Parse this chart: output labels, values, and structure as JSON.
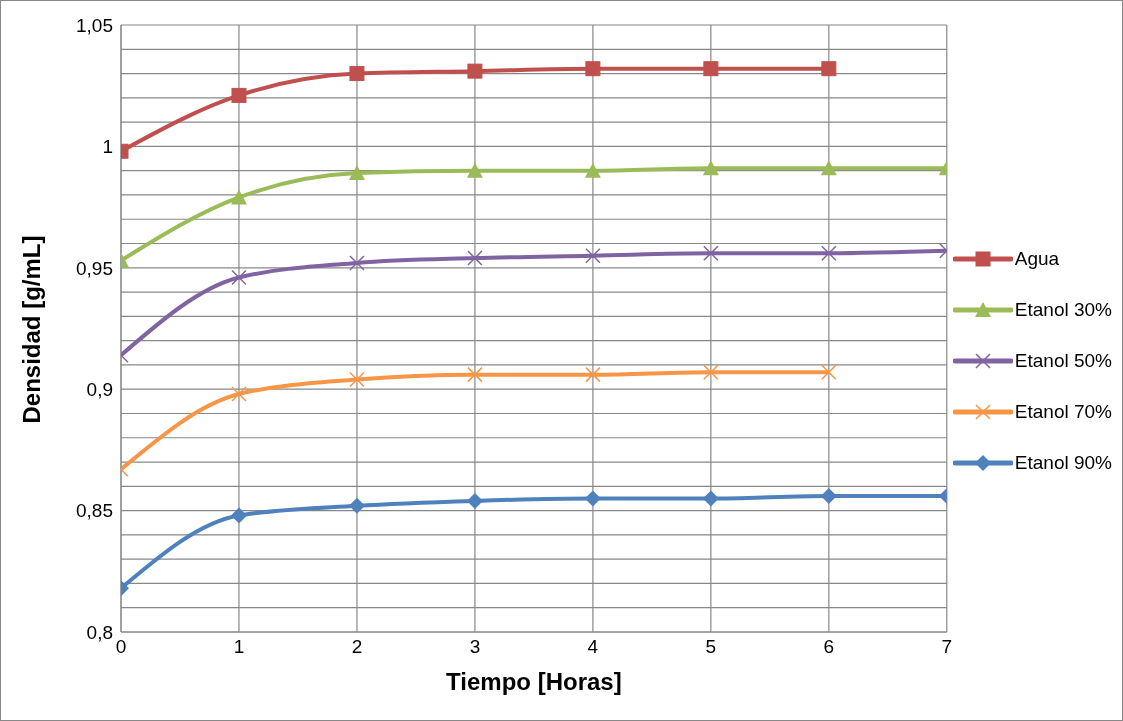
{
  "chart_data": {
    "type": "line",
    "xlabel": "Tiempo [Horas]",
    "ylabel": "Densidad [g/mL]",
    "x": [
      0,
      1,
      2,
      3,
      4,
      5,
      6,
      7
    ],
    "series": [
      {
        "name": "Agua",
        "color": "#c0504d",
        "marker": "square",
        "values": [
          0.998,
          1.021,
          1.03,
          1.031,
          1.032,
          1.032,
          1.032,
          null
        ]
      },
      {
        "name": "Etanol 30%",
        "color": "#9bbb59",
        "marker": "triangle",
        "values": [
          0.953,
          0.979,
          0.989,
          0.99,
          0.99,
          0.991,
          0.991,
          0.991
        ]
      },
      {
        "name": "Etanol 50%",
        "color": "#8064a2",
        "marker": "cross",
        "values": [
          0.914,
          0.946,
          0.952,
          0.954,
          0.955,
          0.956,
          0.956,
          0.957
        ]
      },
      {
        "name": "Etanol 70%",
        "color": "#f79646",
        "marker": "cross",
        "values": [
          0.867,
          0.898,
          0.904,
          0.906,
          0.906,
          0.907,
          0.907,
          null
        ]
      },
      {
        "name": "Etanol 90%",
        "color": "#4f81bd",
        "marker": "diamond",
        "values": [
          0.818,
          0.848,
          0.852,
          0.854,
          0.855,
          0.855,
          0.856,
          0.856
        ]
      }
    ],
    "xlim": [
      0,
      7
    ],
    "xticks": [
      0,
      1,
      2,
      3,
      4,
      5,
      6,
      7
    ],
    "ylim": [
      0.8,
      1.05
    ],
    "yticks": [
      {
        "value": 0.8,
        "label": "0,8"
      },
      {
        "value": 0.81,
        "label": null
      },
      {
        "value": 0.82,
        "label": null
      },
      {
        "value": 0.83,
        "label": null
      },
      {
        "value": 0.84,
        "label": null
      },
      {
        "value": 0.85,
        "label": "0,85"
      },
      {
        "value": 0.86,
        "label": null
      },
      {
        "value": 0.87,
        "label": null
      },
      {
        "value": 0.88,
        "label": null
      },
      {
        "value": 0.89,
        "label": null
      },
      {
        "value": 0.9,
        "label": "0,9"
      },
      {
        "value": 0.91,
        "label": null
      },
      {
        "value": 0.92,
        "label": null
      },
      {
        "value": 0.93,
        "label": null
      },
      {
        "value": 0.94,
        "label": null
      },
      {
        "value": 0.95,
        "label": "0,95"
      },
      {
        "value": 0.96,
        "label": null
      },
      {
        "value": 0.97,
        "label": null
      },
      {
        "value": 0.98,
        "label": null
      },
      {
        "value": 0.99,
        "label": null
      },
      {
        "value": 1,
        "label": "1"
      },
      {
        "value": 1.01,
        "label": null
      },
      {
        "value": 1.02,
        "label": null
      },
      {
        "value": 1.03,
        "label": null
      },
      {
        "value": 1.04,
        "label": null
      },
      {
        "value": 1.05,
        "label": "1,05"
      }
    ],
    "grid": true,
    "legend": "right",
    "line_style": "solid"
  }
}
